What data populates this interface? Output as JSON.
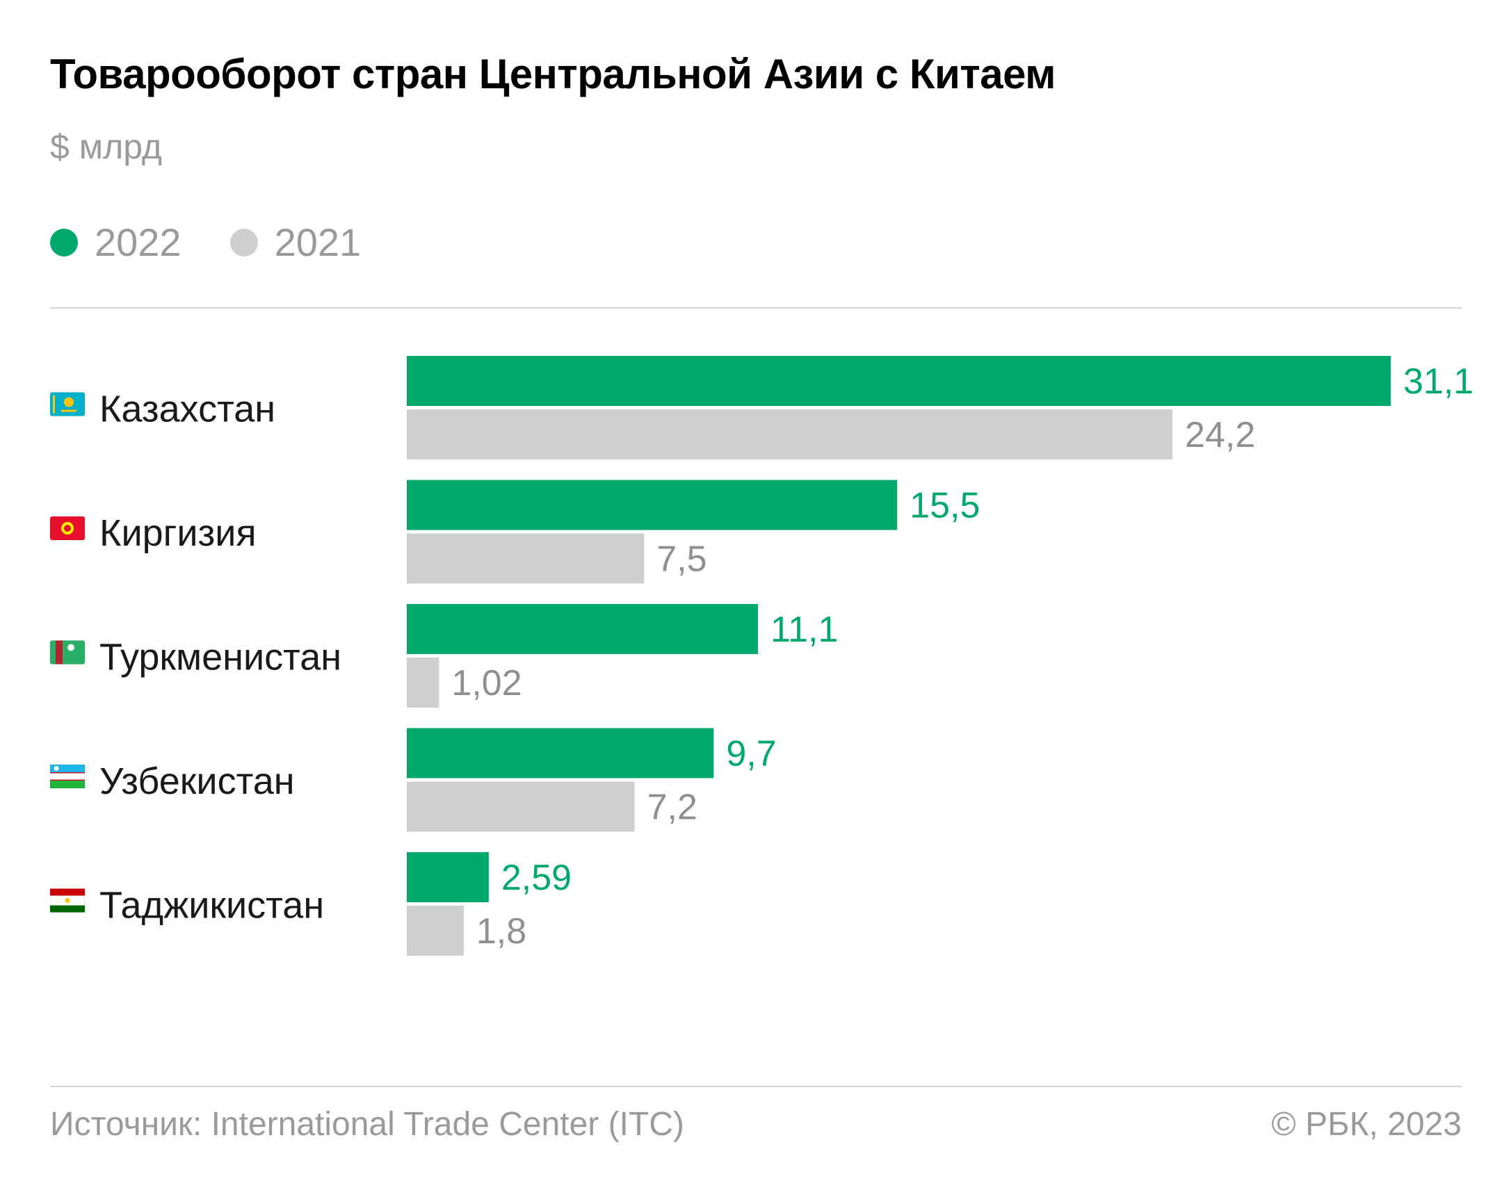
{
  "chart_data": {
    "type": "bar",
    "orientation": "horizontal",
    "title": "Товарооборот стран Центральной Азии с Китаем",
    "subtitle": "$ млрд",
    "categories": [
      "Казахстан",
      "Киргизия",
      "Туркменистан",
      "Узбекистан",
      "Таджикистан"
    ],
    "category_flags": [
      "flag-kazakhstan-icon",
      "flag-kyrgyzstan-icon",
      "flag-turkmenistan-icon",
      "flag-uzbekistan-icon",
      "flag-tajikistan-icon"
    ],
    "series": [
      {
        "name": "2022",
        "color": "#00a86b",
        "values": [
          31.1,
          15.5,
          11.1,
          9.7,
          2.59
        ],
        "labels": [
          "31,1",
          "15,5",
          "11,1",
          "9,7",
          "2,59"
        ]
      },
      {
        "name": "2021",
        "color": "#cfcfcf",
        "values": [
          24.2,
          7.5,
          1.02,
          7.2,
          1.8
        ],
        "labels": [
          "24,2",
          "7,5",
          "1,02",
          "7,2",
          "1,8"
        ]
      }
    ],
    "xlim": [
      0,
      31.1
    ],
    "grid": false,
    "legend_position": "top-left"
  },
  "legend": [
    {
      "label": "2022",
      "color": "#00a86b"
    },
    {
      "label": "2021",
      "color": "#cfcfcf"
    }
  ],
  "footer": {
    "source": "Источник: International Trade Center (ITC)",
    "copyright": "© РБК, 2023"
  },
  "colors": {
    "accent": "#00a86b",
    "secondary": "#cfcfcf",
    "label_muted": "#8f8f8f",
    "divider": "#d2d2d2"
  }
}
